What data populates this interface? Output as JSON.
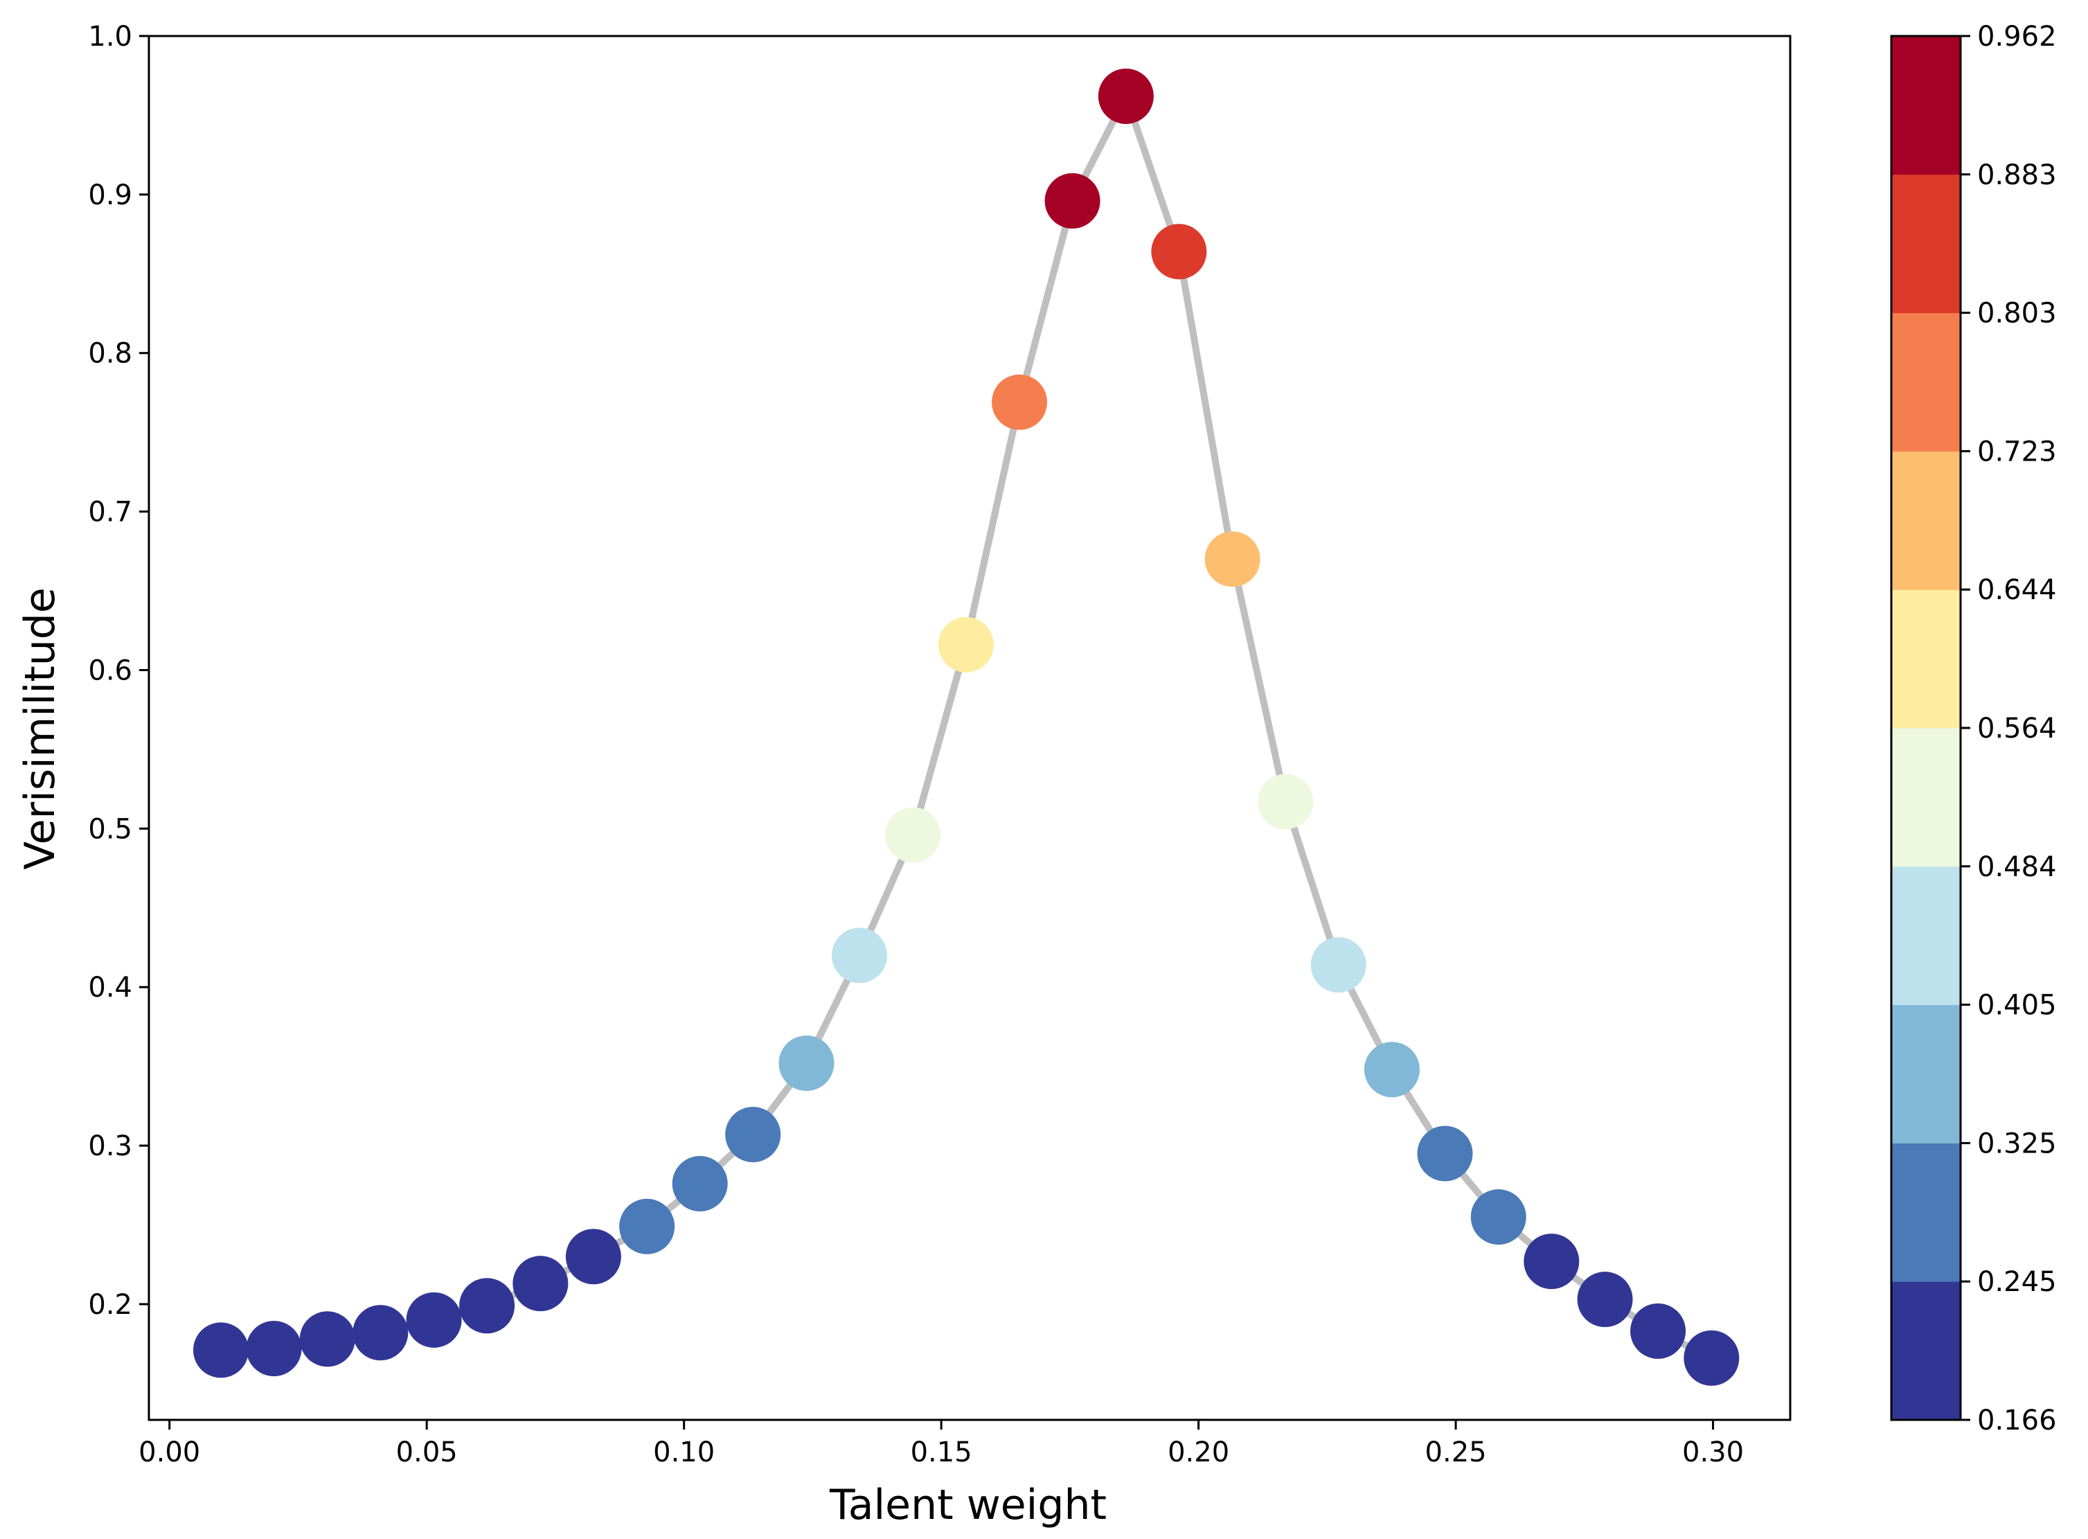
{
  "chart_data": {
    "type": "scatter",
    "title": "",
    "xlabel": "Talent weight",
    "ylabel": "Verisimilitude",
    "xlim": [
      -0.004,
      0.315
    ],
    "ylim": [
      0.127,
      1.0
    ],
    "x_ticks": [
      0.0,
      0.05,
      0.1,
      0.15,
      0.2,
      0.25,
      0.3
    ],
    "x_tick_labels": [
      "0.00",
      "0.05",
      "0.10",
      "0.15",
      "0.20",
      "0.25",
      "0.30"
    ],
    "y_ticks": [
      0.2,
      0.3,
      0.4,
      0.5,
      0.6,
      0.7,
      0.8,
      0.9,
      1.0
    ],
    "y_tick_labels": [
      "0.2",
      "0.3",
      "0.4",
      "0.5",
      "0.6",
      "0.7",
      "0.8",
      "0.9",
      "1.0"
    ],
    "grid": false,
    "connecting_line_color": "#bfbfbf",
    "series": [
      {
        "x": [
          0.01,
          0.0203,
          0.0307,
          0.041,
          0.0514,
          0.0617,
          0.0721,
          0.0824,
          0.0928,
          0.1031,
          0.1134,
          0.1238,
          0.1341,
          0.1445,
          0.1548,
          0.1652,
          0.1755,
          0.1859,
          0.1962,
          0.2066,
          0.2169,
          0.2272,
          0.2376,
          0.2479,
          0.2583,
          0.2686,
          0.279,
          0.2893,
          0.2997
        ],
        "y": [
          0.171,
          0.172,
          0.178,
          0.182,
          0.19,
          0.199,
          0.213,
          0.23,
          0.249,
          0.276,
          0.307,
          0.352,
          0.42,
          0.496,
          0.616,
          0.769,
          0.896,
          0.962,
          0.864,
          0.67,
          0.517,
          0.414,
          0.348,
          0.295,
          0.255,
          0.227,
          0.203,
          0.183,
          0.166
        ]
      }
    ],
    "colorbar": {
      "min": 0.166,
      "max": 0.962,
      "tick_labels": [
        "0.166",
        "0.245",
        "0.325",
        "0.405",
        "0.484",
        "0.564",
        "0.644",
        "0.723",
        "0.803",
        "0.883",
        "0.962"
      ],
      "colors": [
        "#313695",
        "#4a7ab7",
        "#82b8d7",
        "#bde2ed",
        "#eef8df",
        "#feeda1",
        "#fdbf6f",
        "#f57e4e",
        "#dc3b2c",
        "#a50026"
      ]
    }
  }
}
